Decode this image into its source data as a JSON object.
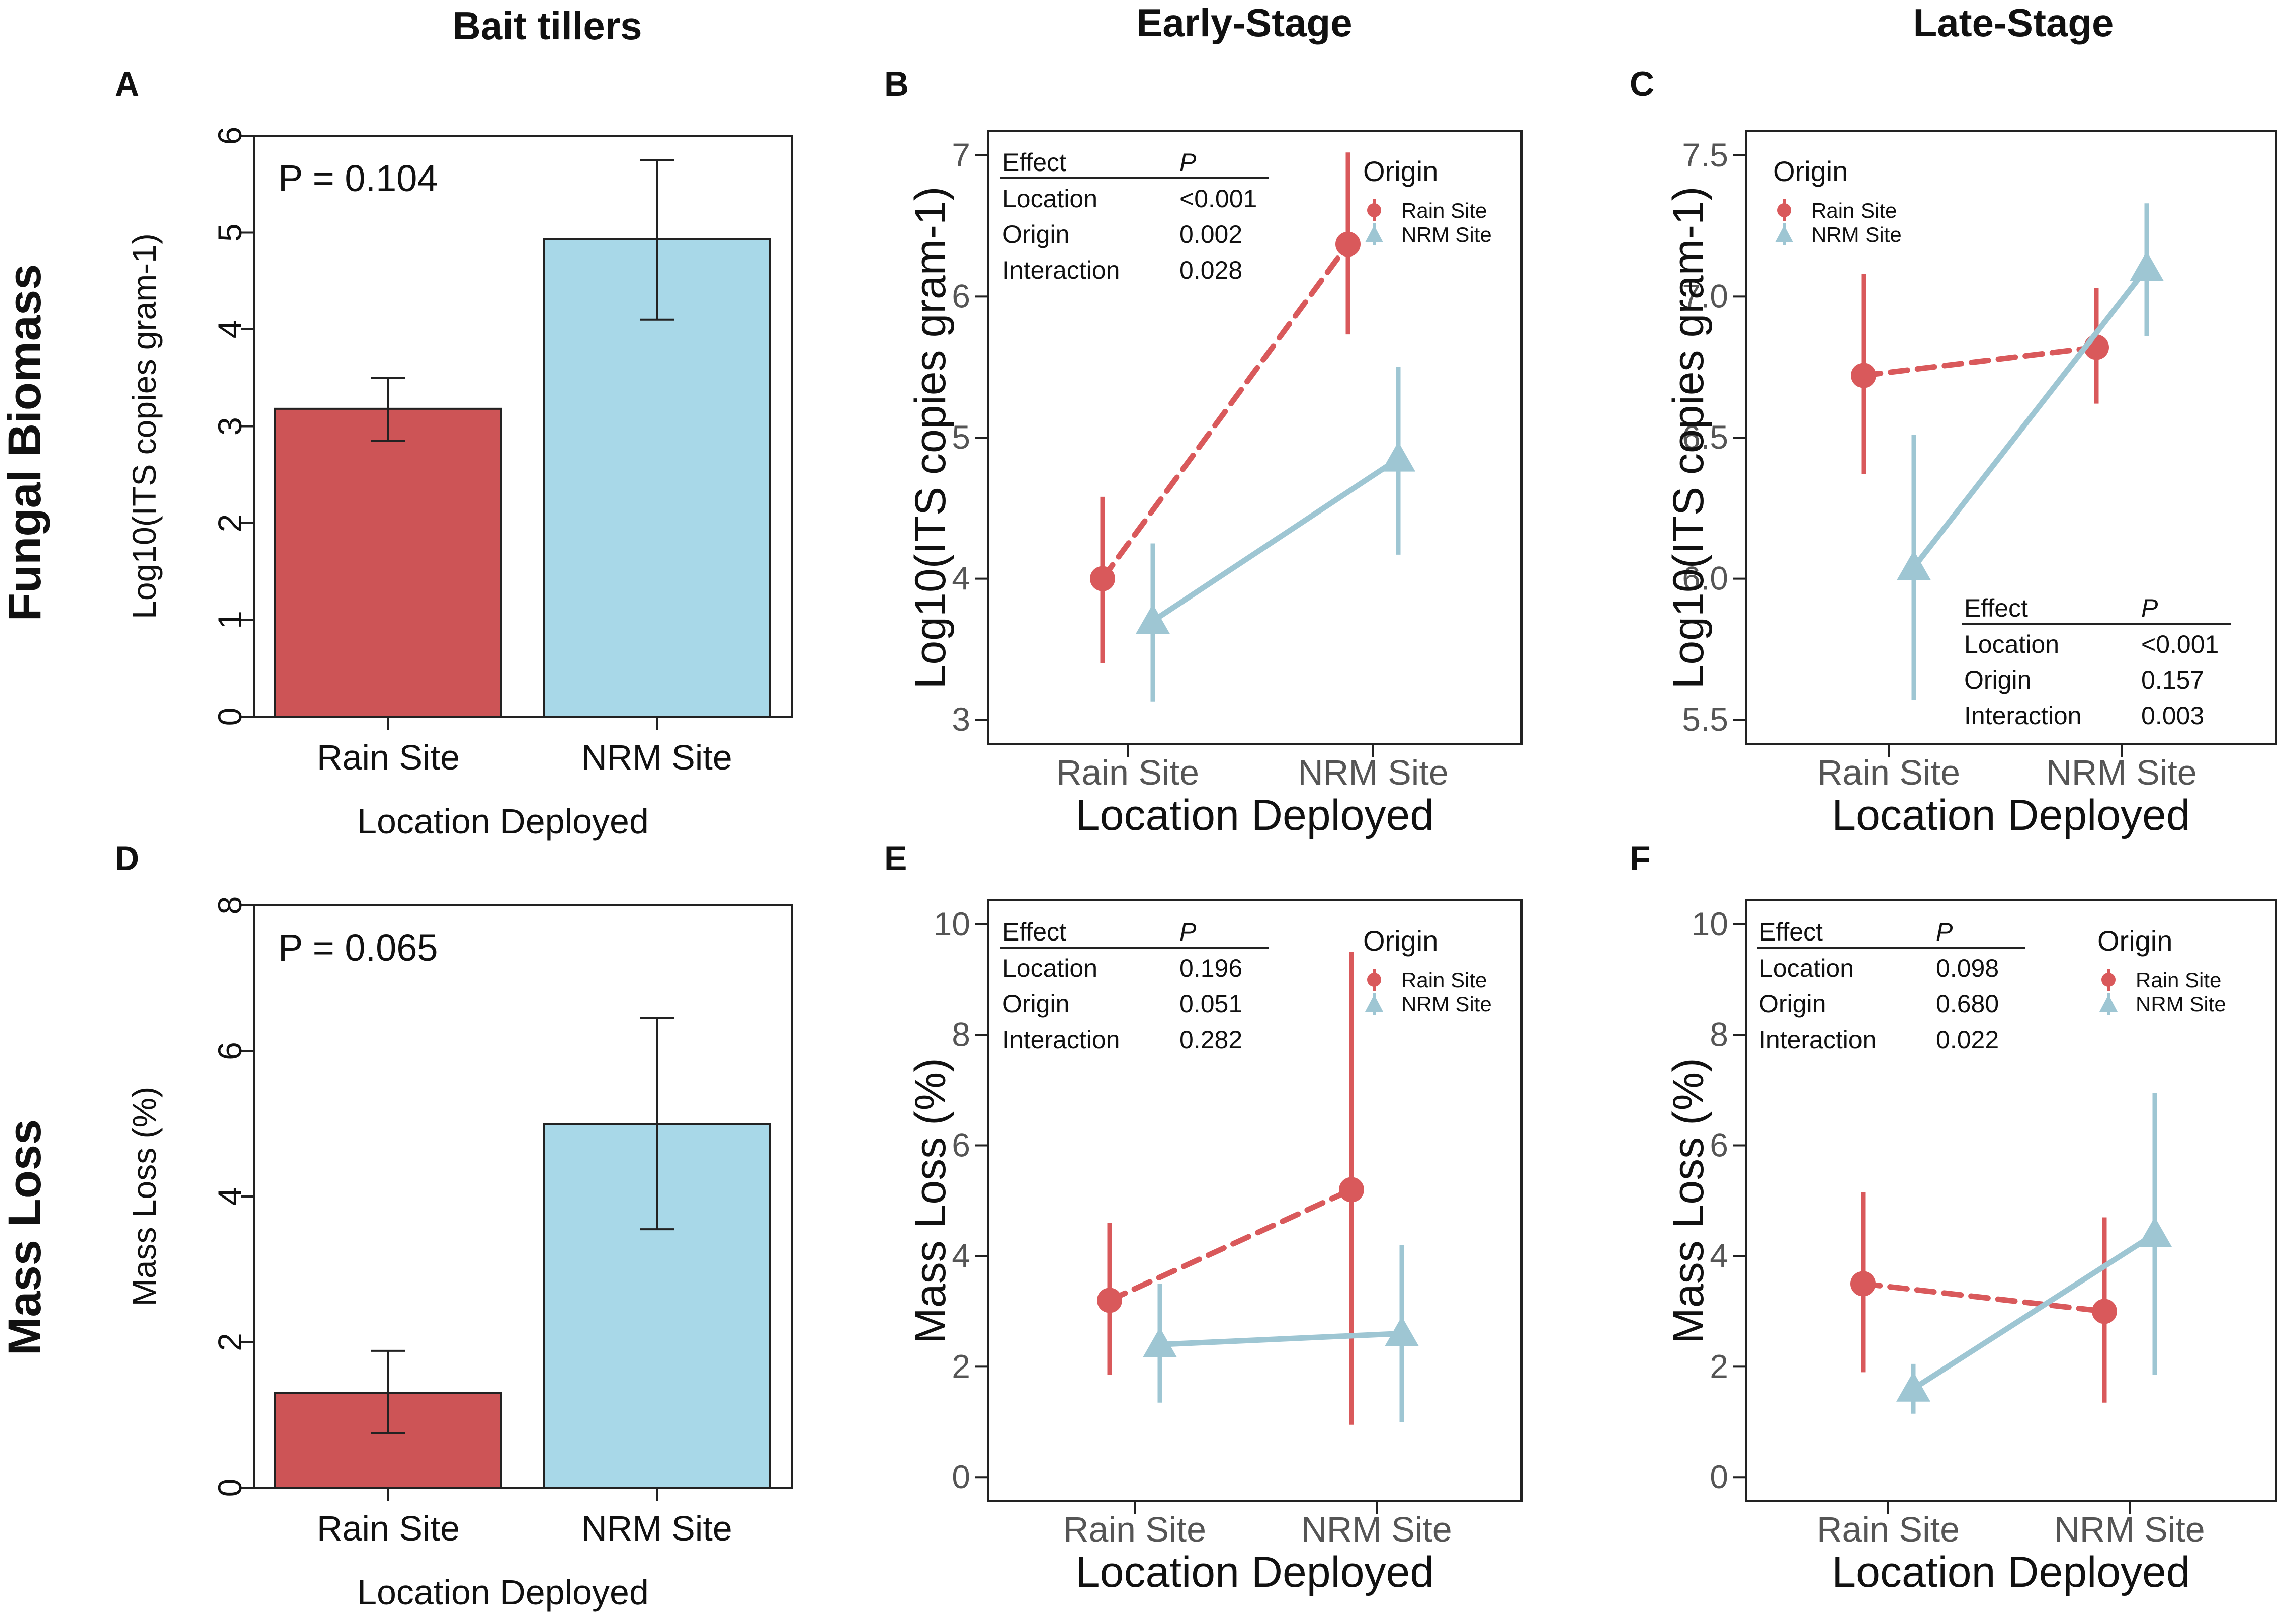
{
  "columns": [
    "Bait tillers",
    "Early-Stage",
    "Late-Stage"
  ],
  "rows": [
    "Fungal Biomass",
    "Mass Loss"
  ],
  "legend": {
    "title": "Origin",
    "items": [
      "Rain Site",
      "NRM Site"
    ]
  },
  "colors": {
    "rain": "#CD5456",
    "nrm": "#A8D8E8",
    "rain_point": "#D9595B",
    "nrm_point": "#9EC6D3"
  },
  "chart_data": [
    {
      "panel": "A",
      "type": "bar",
      "title": "Bait tillers",
      "categories": [
        "Rain Site",
        "NRM Site"
      ],
      "values": [
        3.18,
        4.93
      ],
      "error_low": [
        2.85,
        4.1
      ],
      "error_high": [
        3.5,
        5.75
      ],
      "xlabel": "Location Deployed",
      "ylabel": "Log10(ITS copies gram-1)",
      "ylim": [
        0,
        6
      ],
      "yticks": [
        "0",
        "1",
        "2",
        "3",
        "4",
        "5",
        "6"
      ],
      "annotation": "P = 0.104"
    },
    {
      "panel": "B",
      "type": "line",
      "title": "Early-Stage",
      "categories": [
        "Rain Site",
        "NRM Site"
      ],
      "series": [
        {
          "name": "Rain Site",
          "values": [
            4.0,
            6.37
          ],
          "error_low": [
            3.4,
            5.73
          ],
          "error_high": [
            4.58,
            7.02
          ]
        },
        {
          "name": "NRM Site",
          "values": [
            3.7,
            4.85
          ],
          "error_low": [
            3.13,
            4.17
          ],
          "error_high": [
            4.25,
            5.5
          ]
        }
      ],
      "xlabel": "Location Deployed",
      "ylabel": "Log10(ITS copies gram-1)",
      "ylim": [
        3,
        7
      ],
      "yticks": [
        "3",
        "4",
        "5",
        "6",
        "7"
      ],
      "table": {
        "header": [
          "Effect",
          "P"
        ],
        "rows": [
          [
            "Location",
            "<0.001"
          ],
          [
            "Origin",
            "0.002"
          ],
          [
            "Interaction",
            "0.028"
          ]
        ]
      }
    },
    {
      "panel": "C",
      "type": "line",
      "title": "Late-Stage",
      "categories": [
        "Rain Site",
        "NRM Site"
      ],
      "series": [
        {
          "name": "Rain Site",
          "values": [
            6.72,
            6.82
          ],
          "error_low": [
            6.37,
            6.62
          ],
          "error_high": [
            7.08,
            7.03
          ]
        },
        {
          "name": "NRM Site",
          "values": [
            6.04,
            7.1
          ],
          "error_low": [
            5.57,
            6.86
          ],
          "error_high": [
            6.51,
            7.33
          ]
        }
      ],
      "xlabel": "Location Deployed",
      "ylabel": "Log10(ITS copies gram-1)",
      "ylim": [
        5.5,
        7.5
      ],
      "yticks": [
        "5.5",
        "6.0",
        "6.5",
        "7.0",
        "7.5"
      ],
      "table": {
        "header": [
          "Effect",
          "P"
        ],
        "rows": [
          [
            "Location",
            "<0.001"
          ],
          [
            "Origin",
            "0.157"
          ],
          [
            "Interaction",
            "0.003"
          ]
        ]
      }
    },
    {
      "panel": "D",
      "type": "bar",
      "categories": [
        "Rain Site",
        "NRM Site"
      ],
      "values": [
        1.3,
        5.0
      ],
      "error_low": [
        0.75,
        3.55
      ],
      "error_high": [
        1.88,
        6.45
      ],
      "xlabel": "Location Deployed",
      "ylabel": "Mass Loss (%)",
      "ylim": [
        0,
        8
      ],
      "yticks": [
        "0",
        "2",
        "4",
        "6",
        "8"
      ],
      "annotation": "P = 0.065"
    },
    {
      "panel": "E",
      "type": "line",
      "categories": [
        "Rain Site",
        "NRM Site"
      ],
      "series": [
        {
          "name": "Rain Site",
          "values": [
            3.2,
            5.2
          ],
          "error_low": [
            1.85,
            0.95
          ],
          "error_high": [
            4.6,
            9.5
          ]
        },
        {
          "name": "NRM Site",
          "values": [
            2.4,
            2.6
          ],
          "error_low": [
            1.35,
            1.0
          ],
          "error_high": [
            3.5,
            4.2
          ]
        }
      ],
      "xlabel": "Location Deployed",
      "ylabel": "Mass Loss (%)",
      "ylim": [
        0,
        10
      ],
      "yticks": [
        "0",
        "2",
        "4",
        "6",
        "8",
        "10"
      ],
      "table": {
        "header": [
          "Effect",
          "P"
        ],
        "rows": [
          [
            "Location",
            "0.196"
          ],
          [
            "Origin",
            "0.051"
          ],
          [
            "Interaction",
            "0.282"
          ]
        ]
      }
    },
    {
      "panel": "F",
      "type": "line",
      "categories": [
        "Rain Site",
        "NRM Site"
      ],
      "series": [
        {
          "name": "Rain Site",
          "values": [
            3.5,
            3.0
          ],
          "error_low": [
            1.9,
            1.35
          ],
          "error_high": [
            5.15,
            4.7
          ]
        },
        {
          "name": "NRM Site",
          "values": [
            1.6,
            4.4
          ],
          "error_low": [
            1.15,
            1.85
          ],
          "error_high": [
            2.05,
            6.95
          ]
        }
      ],
      "xlabel": "Location Deployed",
      "ylabel": "Mass Loss (%)",
      "ylim": [
        0,
        10
      ],
      "yticks": [
        "0",
        "2",
        "4",
        "6",
        "8",
        "10"
      ],
      "table": {
        "header": [
          "Effect",
          "P"
        ],
        "rows": [
          [
            "Location",
            "0.098"
          ],
          [
            "Origin",
            "0.680"
          ],
          [
            "Interaction",
            "0.022"
          ]
        ]
      }
    }
  ]
}
